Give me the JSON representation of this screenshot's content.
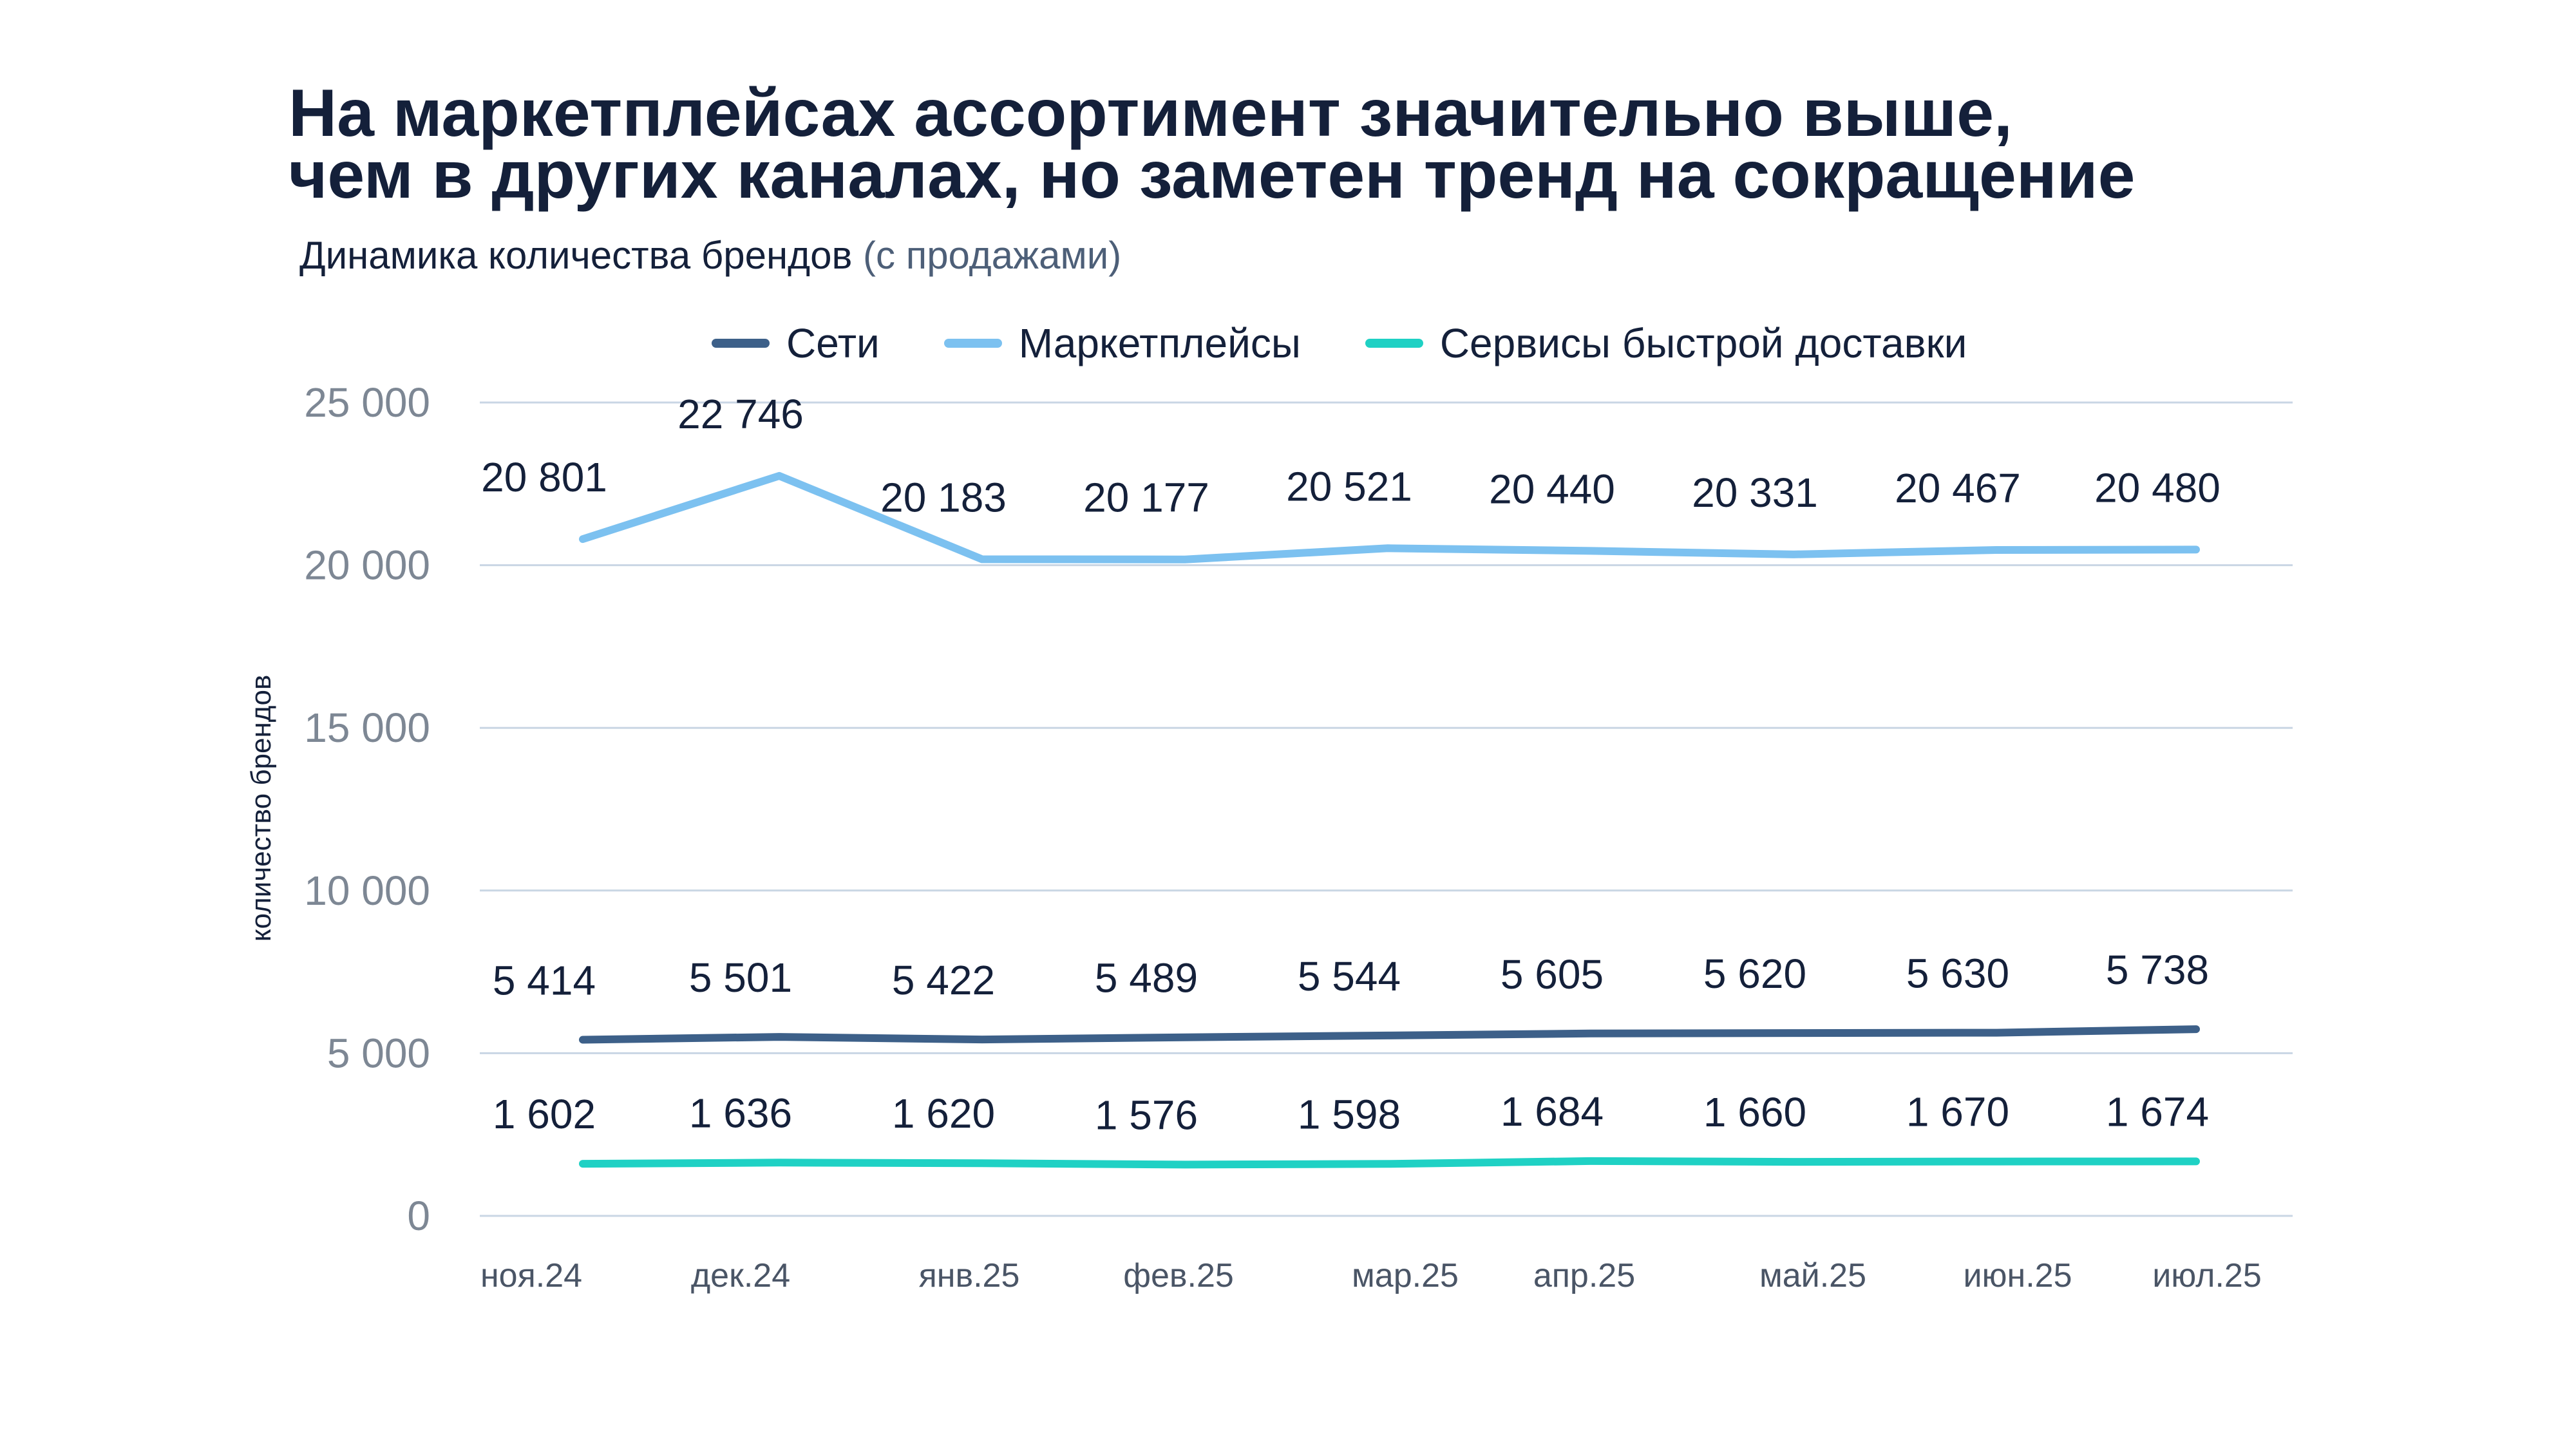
{
  "page": {
    "title_line1": "На маркетплейсах ассортимент значительно выше,",
    "title_line2": "чем в других каналах, но заметен тренд на сокращение",
    "subtitle_main": "Динамика количества брендов",
    "subtitle_paren": "(с продажами)"
  },
  "chart_data": {
    "type": "line",
    "title": "Динамика количества брендов (с продажами)",
    "xlabel": "",
    "ylabel": "количество брендов",
    "categories": [
      "ноя.24",
      "дек.24",
      "янв.25",
      "фев.25",
      "мар.25",
      "апр.25",
      "май.25",
      "июн.25",
      "июл.25"
    ],
    "ylim": [
      0,
      25000
    ],
    "yticks": [
      0,
      5000,
      10000,
      15000,
      20000,
      25000
    ],
    "ytick_labels": [
      "0",
      "5 000",
      "10 000",
      "15 000",
      "20 000",
      "25 000"
    ],
    "grid": true,
    "legend_position": "top-center",
    "series": [
      {
        "name": "Сети",
        "color": "#3d6089",
        "values": [
          5414,
          5501,
          5422,
          5489,
          5544,
          5605,
          5620,
          5630,
          5738
        ],
        "labels": [
          "5 414",
          "5 501",
          "5 422",
          "5 489",
          "5 544",
          "5 605",
          "5 620",
          "5 630",
          "5 738"
        ]
      },
      {
        "name": "Маркетплейсы",
        "color": "#7cc1f0",
        "values": [
          20801,
          22746,
          20183,
          20177,
          20521,
          20440,
          20331,
          20467,
          20480
        ],
        "labels": [
          "20 801",
          "22 746",
          "20 183",
          "20 177",
          "20 521",
          "20 440",
          "20 331",
          "20 467",
          "20 480"
        ]
      },
      {
        "name": "Сервисы быстрой доставки",
        "color": "#1fd1c4",
        "values": [
          1602,
          1636,
          1620,
          1576,
          1598,
          1684,
          1660,
          1670,
          1674
        ],
        "labels": [
          "1 602",
          "1 636",
          "1 620",
          "1 576",
          "1 598",
          "1 684",
          "1 660",
          "1 670",
          "1 674"
        ]
      }
    ]
  }
}
